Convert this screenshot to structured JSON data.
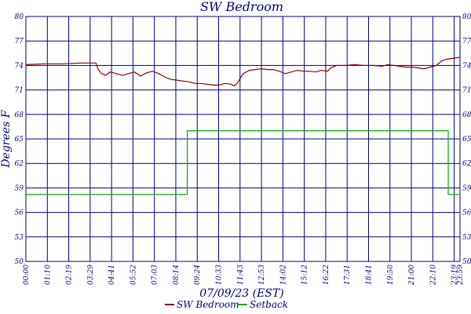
{
  "chart_data": {
    "type": "line",
    "title": "SW Bedroom",
    "xlabel": "07/09/23 (EST)",
    "ylabel": "Degrees F",
    "ylim": [
      50,
      80
    ],
    "y_ticks": [
      50,
      53,
      56,
      59,
      62,
      65,
      68,
      71,
      74,
      77,
      80
    ],
    "y_tick_labels": [
      "50",
      "53",
      "56",
      "59",
      "62",
      "65",
      "68",
      "71",
      "74",
      "77",
      "80"
    ],
    "x_tick_labels": [
      "00:00",
      "01:10",
      "02:19",
      "03:29",
      "04:41",
      "05:52",
      "07:03",
      "08:14",
      "09:24",
      "10:33",
      "11:43",
      "12:53",
      "14:02",
      "15:12",
      "16:22",
      "17:31",
      "18:41",
      "19:50",
      "21:00",
      "22:10",
      "23:19",
      "23:59"
    ],
    "xlim_minutes": [
      0,
      1439
    ],
    "grid": true,
    "legend_position": "bottom-center",
    "colors": {
      "sw_bedroom": "#8b0000",
      "setback": "#00aa00",
      "grid": "#000080",
      "text": "#000080"
    },
    "series": [
      {
        "name": "SW Bedroom",
        "x_minutes": [
          0,
          60,
          120,
          180,
          232,
          240,
          250,
          265,
          280,
          300,
          320,
          340,
          360,
          380,
          400,
          420,
          440,
          460,
          480,
          500,
          520,
          540,
          560,
          580,
          600,
          620,
          640,
          660,
          680,
          690,
          700,
          720,
          740,
          760,
          780,
          800,
          820,
          840,
          860,
          880,
          900,
          920,
          940,
          960,
          980,
          1000,
          1010,
          1030,
          1060,
          1090,
          1120,
          1150,
          1180,
          1200,
          1220,
          1240,
          1260,
          1280,
          1300,
          1320,
          1340,
          1360,
          1380,
          1400,
          1420,
          1439
        ],
        "values": [
          74.1,
          74.2,
          74.2,
          74.3,
          74.3,
          73.5,
          73.0,
          72.8,
          73.2,
          73.0,
          72.8,
          73.0,
          73.2,
          72.7,
          73.1,
          73.3,
          73.0,
          72.6,
          72.3,
          72.2,
          72.1,
          72.0,
          71.8,
          71.8,
          71.7,
          71.6,
          71.6,
          71.8,
          71.7,
          71.5,
          71.8,
          73.0,
          73.4,
          73.5,
          73.6,
          73.5,
          73.5,
          73.3,
          73.0,
          73.2,
          73.4,
          73.3,
          73.3,
          73.2,
          73.4,
          73.3,
          73.7,
          74.0,
          74.0,
          74.1,
          74.0,
          74.0,
          73.9,
          74.1,
          74.0,
          73.9,
          73.8,
          73.8,
          73.7,
          73.6,
          73.8,
          74.0,
          74.6,
          74.8,
          74.9,
          75.0
        ]
      },
      {
        "name": "Setback",
        "x_minutes": [
          0,
          535,
          535,
          1400,
          1400,
          1439
        ],
        "values": [
          58.2,
          58.2,
          66.0,
          66.0,
          58.2,
          58.2
        ]
      }
    ]
  }
}
